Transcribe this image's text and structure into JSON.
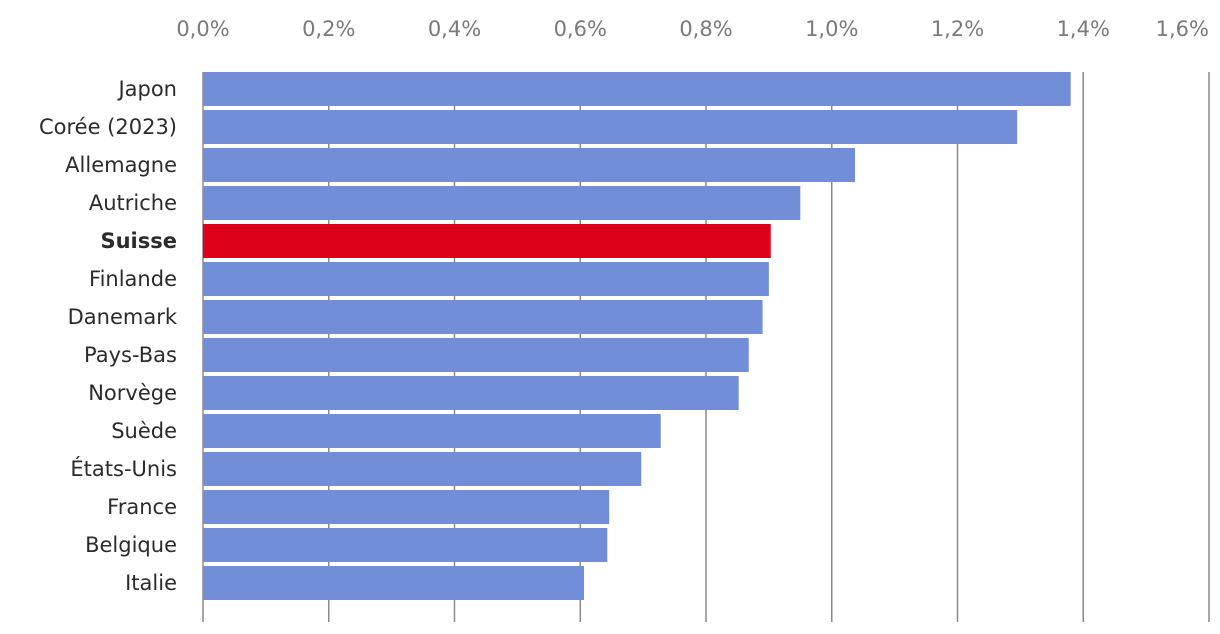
{
  "chart_data": {
    "type": "bar",
    "orientation": "horizontal",
    "title": "",
    "xlabel": "",
    "ylabel": "",
    "xlim": [
      0,
      1.6
    ],
    "x_ticks": [
      {
        "value": 0.0,
        "label": "0,0%"
      },
      {
        "value": 0.2,
        "label": "0,2%"
      },
      {
        "value": 0.4,
        "label": "0,4%"
      },
      {
        "value": 0.6,
        "label": "0,6%"
      },
      {
        "value": 0.8,
        "label": "0,8%"
      },
      {
        "value": 1.0,
        "label": "1,0%"
      },
      {
        "value": 1.2,
        "label": "1,2%"
      },
      {
        "value": 1.4,
        "label": "1,4%"
      },
      {
        "value": 1.6,
        "label": "1,6%"
      }
    ],
    "grid": true,
    "categories": [
      "Japon",
      "Corée (2023)",
      "Allemagne",
      "Autriche",
      "Suisse",
      "Finlande",
      "Danemark",
      "Pays-Bas",
      "Norvège",
      "Suède",
      "États-Unis",
      "France",
      "Belgique",
      "Italie"
    ],
    "values": [
      1.38,
      1.295,
      1.037,
      0.95,
      0.903,
      0.9,
      0.89,
      0.868,
      0.852,
      0.728,
      0.697,
      0.646,
      0.643,
      0.606
    ],
    "highlight": "Suisse",
    "colors": {
      "bar": "#728ed9",
      "highlight": "#dc0018",
      "grid": "#8a8a8a",
      "tick_text": "#7a7a7a",
      "label_text": "#2b2b2b"
    }
  }
}
